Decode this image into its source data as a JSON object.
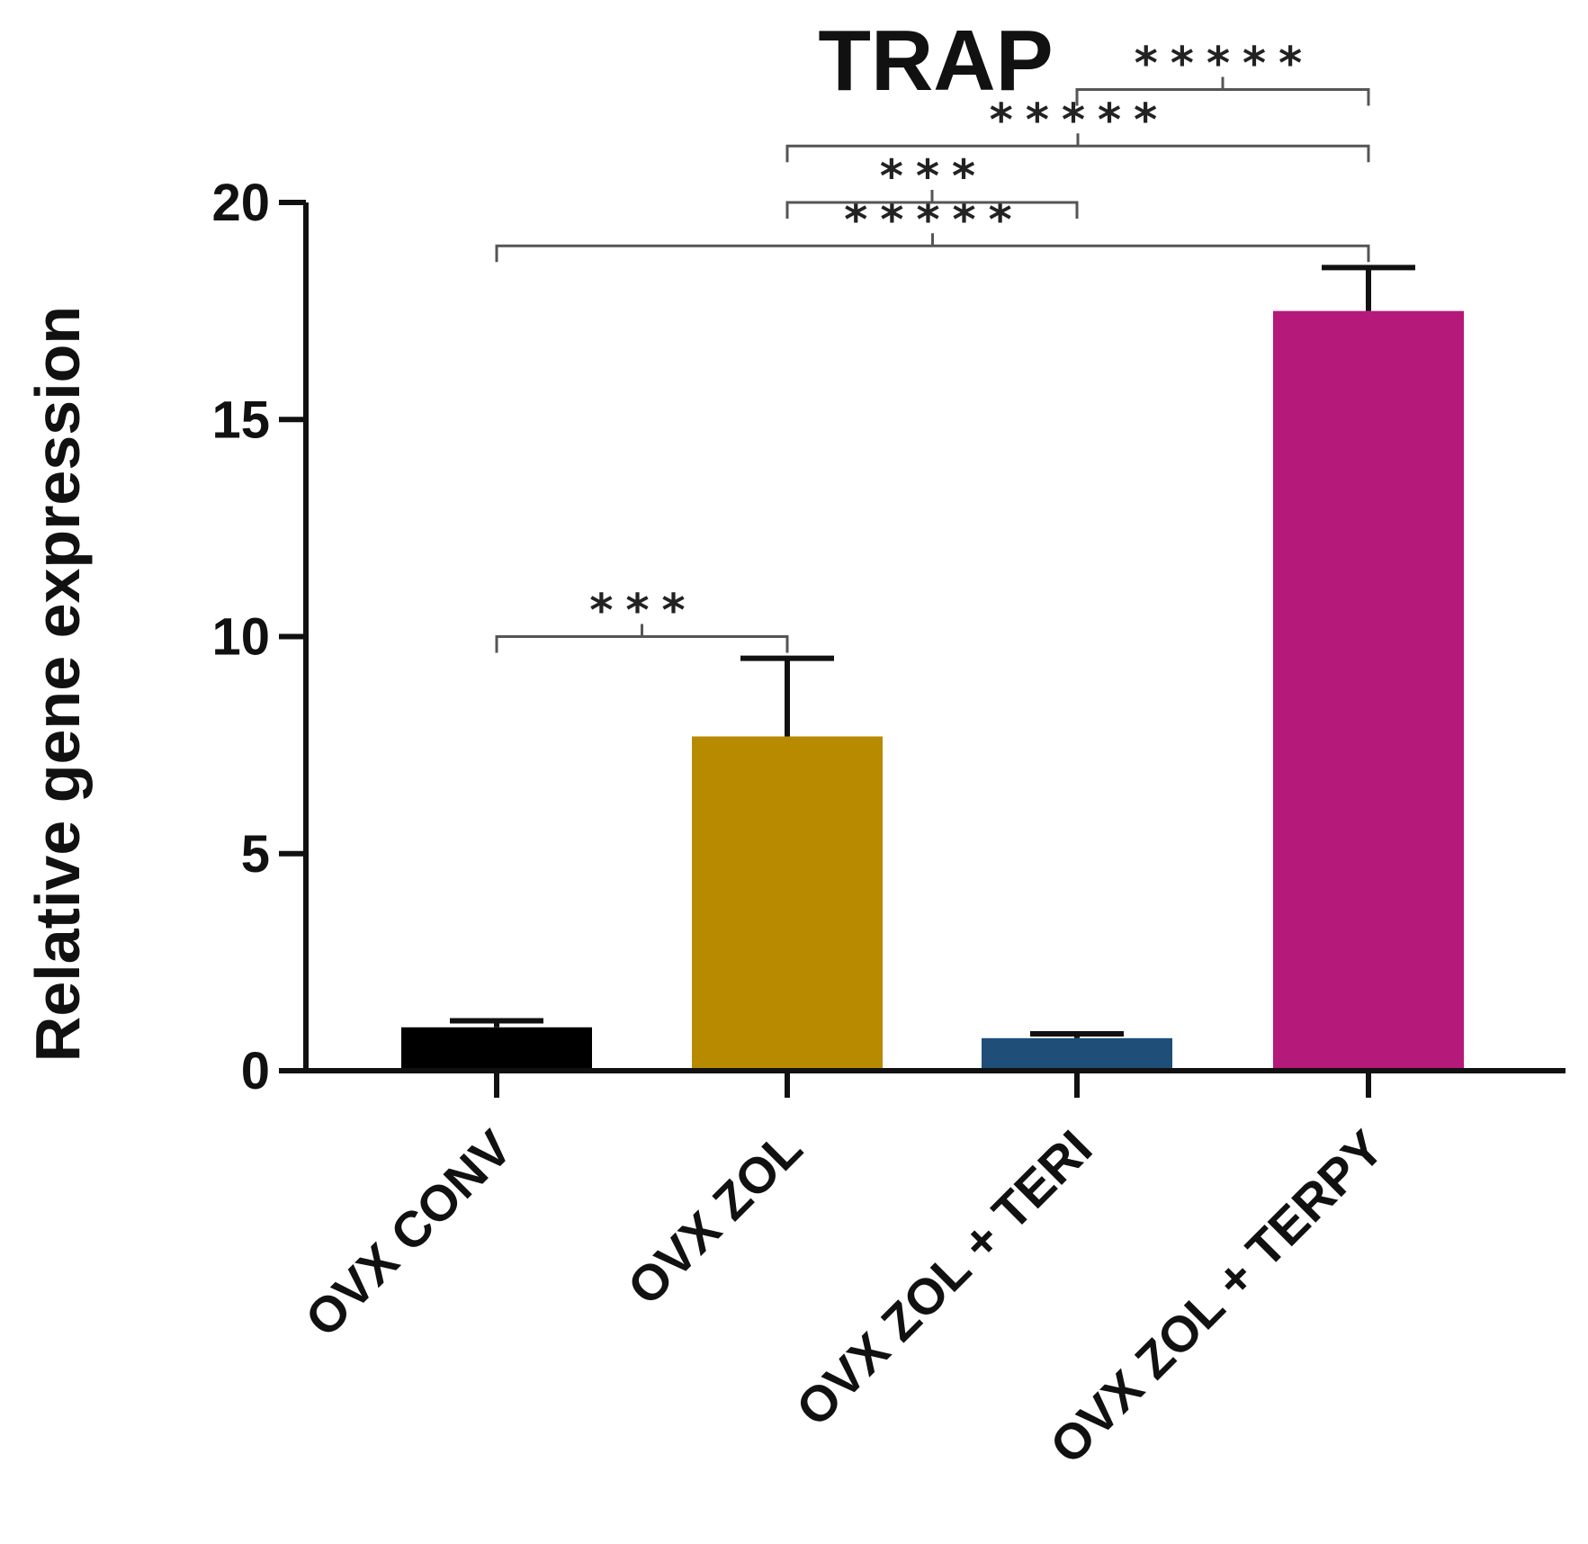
{
  "chart_data": {
    "type": "bar",
    "title": "TRAP",
    "xlabel": "",
    "ylabel": "Relative gene expression",
    "ylim": [
      0,
      20
    ],
    "yticks": [
      0,
      5,
      10,
      15,
      20
    ],
    "categories": [
      "OVX CONV",
      "OVX ZOL",
      "OVX ZOL + TERI",
      "OVX ZOL + TERPY"
    ],
    "values": [
      1.0,
      7.7,
      0.75,
      17.5
    ],
    "errors": [
      0.15,
      1.8,
      0.1,
      1.0
    ],
    "colors": [
      "#000000",
      "#b88a00",
      "#1f4e79",
      "#b5197a"
    ],
    "grid": false,
    "significance": [
      {
        "from": 0,
        "to": 1,
        "label": "***",
        "level": 10
      },
      {
        "from": 0,
        "to": 3,
        "label": "*****",
        "level": 19
      },
      {
        "from": 1,
        "to": 2,
        "label": "***",
        "level": 20
      },
      {
        "from": 1,
        "to": 3,
        "label": "*****",
        "level": 21.3
      },
      {
        "from": 2,
        "to": 3,
        "label": "*****",
        "level": 22.6
      }
    ]
  }
}
